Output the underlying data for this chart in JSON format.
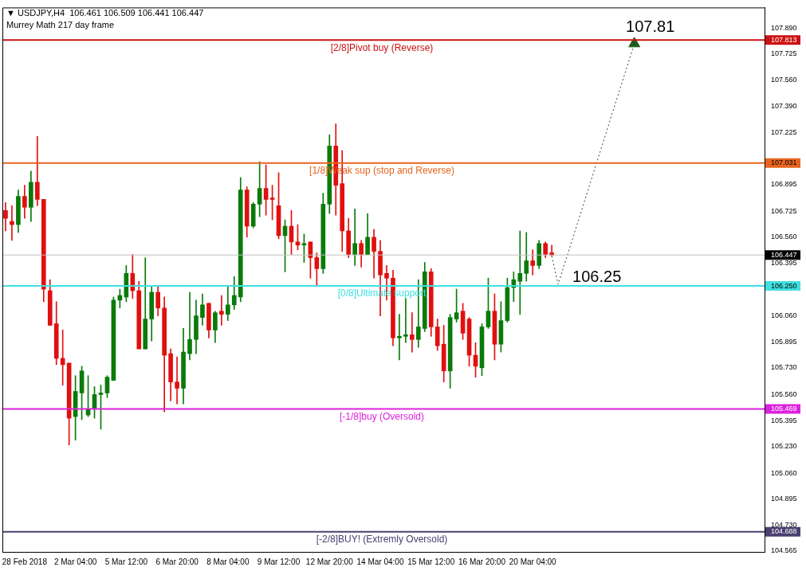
{
  "chart_data": {
    "type": "candlestick",
    "title": "▼ USDJPY,H4  106.461 106.509 106.441 106.447",
    "subtitle": "Murrey Math 217 day frame",
    "categories": [
      null,
      null,
      null,
      "28 Feb 2018",
      null,
      null,
      null,
      null,
      null,
      null,
      null,
      "2 Mar 04:00",
      null,
      null,
      null,
      null,
      null,
      null,
      null,
      "5 Mar 12:00",
      null,
      null,
      null,
      null,
      null,
      null,
      null,
      "6 Mar 20:00",
      null,
      null,
      null,
      null,
      null,
      null,
      null,
      "8 Mar 04:00",
      null,
      null,
      null,
      null,
      null,
      null,
      null,
      "9 Mar 12:00",
      null,
      null,
      null,
      null,
      null,
      null,
      null,
      "12 Mar 20:00",
      null,
      null,
      null,
      null,
      null,
      null,
      null,
      "14 Mar 04:00",
      null,
      null,
      null,
      null,
      null,
      null,
      null,
      "15 Mar 12:00",
      null,
      null,
      null,
      null,
      null,
      null,
      null,
      "16 Mar 20:00",
      null,
      null,
      null,
      null,
      null,
      null,
      null,
      "20 Mar 04:00",
      null,
      null,
      null,
      null,
      null,
      null,
      null,
      null,
      null,
      null,
      null,
      null,
      null,
      null,
      null,
      null,
      null,
      null,
      null,
      null,
      null,
      null,
      null,
      null,
      null,
      null,
      null,
      null,
      null,
      null,
      null,
      null,
      null,
      null,
      null,
      null
    ],
    "ohlc": [
      [
        106.73,
        106.78,
        106.6,
        106.68
      ],
      [
        106.66,
        106.76,
        106.54,
        106.64
      ],
      [
        106.64,
        106.86,
        106.59,
        106.82
      ],
      [
        106.82,
        106.89,
        106.68,
        106.75
      ],
      [
        106.75,
        106.98,
        106.66,
        106.91
      ],
      [
        106.91,
        107.2,
        106.76,
        106.8
      ],
      [
        106.8,
        106.8,
        106.15,
        106.23
      ],
      [
        106.22,
        106.29,
        106.0,
        106.0
      ],
      [
        106.01,
        106.15,
        105.75,
        105.79
      ],
      [
        105.79,
        105.97,
        105.62,
        105.75
      ],
      [
        105.76,
        105.76,
        105.24,
        105.41
      ],
      [
        105.42,
        105.68,
        105.27,
        105.58
      ],
      [
        105.57,
        105.74,
        105.4,
        105.71
      ],
      [
        105.43,
        105.68,
        105.42,
        105.47
      ],
      [
        105.47,
        105.61,
        105.41,
        105.56
      ],
      [
        105.56,
        105.62,
        105.34,
        105.57
      ],
      [
        105.57,
        105.68,
        105.54,
        105.67
      ],
      [
        105.65,
        106.18,
        105.65,
        106.16
      ],
      [
        106.16,
        106.23,
        106.11,
        106.19
      ],
      [
        106.18,
        106.38,
        106.15,
        106.33
      ],
      [
        106.33,
        106.45,
        106.17,
        106.22
      ],
      [
        106.22,
        106.28,
        105.85,
        105.85
      ],
      [
        105.85,
        106.43,
        105.85,
        106.04
      ],
      [
        106.04,
        106.25,
        105.9,
        106.21
      ],
      [
        106.21,
        106.25,
        106.06,
        106.11
      ],
      [
        106.11,
        106.18,
        105.45,
        105.81
      ],
      [
        105.82,
        105.85,
        105.52,
        105.64
      ],
      [
        105.64,
        105.8,
        105.5,
        105.6
      ],
      [
        105.6,
        105.98,
        105.5,
        105.83
      ],
      [
        105.82,
        106.21,
        105.78,
        105.91
      ],
      [
        105.91,
        106.16,
        105.82,
        106.06
      ],
      [
        106.05,
        106.2,
        106.0,
        106.13
      ],
      [
        106.14,
        106.14,
        105.92,
        105.97
      ],
      [
        105.97,
        106.09,
        105.89,
        106.08
      ],
      [
        106.09,
        106.19,
        106.0,
        106.07
      ],
      [
        106.07,
        106.25,
        106.03,
        106.13
      ],
      [
        106.13,
        106.31,
        106.1,
        106.19
      ],
      [
        106.18,
        106.94,
        106.15,
        106.86
      ],
      [
        106.86,
        106.88,
        106.56,
        106.63
      ],
      [
        106.63,
        106.78,
        106.62,
        106.77
      ],
      [
        106.77,
        107.04,
        106.69,
        106.87
      ],
      [
        106.87,
        107.02,
        106.7,
        106.8
      ],
      [
        106.81,
        106.89,
        106.67,
        106.8
      ],
      [
        106.76,
        106.97,
        106.55,
        106.57
      ],
      [
        106.57,
        106.67,
        106.34,
        106.63
      ],
      [
        106.63,
        106.73,
        106.45,
        106.53
      ],
      [
        106.53,
        106.64,
        106.48,
        106.51
      ],
      [
        106.51,
        106.58,
        106.4,
        106.52
      ],
      [
        106.53,
        106.53,
        106.3,
        106.43
      ],
      [
        106.43,
        106.46,
        106.25,
        106.36
      ],
      [
        106.36,
        106.84,
        106.33,
        106.77
      ],
      [
        106.77,
        107.21,
        106.71,
        107.14
      ],
      [
        107.14,
        107.28,
        106.7,
        106.89
      ],
      [
        106.9,
        107.11,
        106.47,
        106.6
      ],
      [
        106.6,
        106.68,
        106.43,
        106.45
      ],
      [
        106.45,
        106.74,
        106.38,
        106.52
      ],
      [
        106.52,
        106.54,
        106.37,
        106.45
      ],
      [
        106.45,
        106.71,
        106.45,
        106.56
      ],
      [
        106.56,
        106.61,
        106.3,
        106.47
      ],
      [
        106.47,
        106.54,
        106.06,
        106.32
      ],
      [
        106.33,
        106.38,
        106.16,
        106.3
      ],
      [
        106.3,
        106.35,
        105.87,
        105.92
      ],
      [
        105.92,
        106.07,
        105.78,
        105.93
      ],
      [
        105.93,
        106.17,
        105.89,
        105.94
      ],
      [
        105.94,
        106.08,
        105.83,
        105.91
      ],
      [
        105.91,
        106.29,
        105.86,
        105.99
      ],
      [
        105.98,
        106.4,
        105.96,
        106.34
      ],
      [
        106.34,
        106.36,
        105.93,
        105.99
      ],
      [
        105.99,
        106.04,
        105.84,
        105.87
      ],
      [
        105.88,
        106.0,
        105.64,
        105.71
      ],
      [
        105.71,
        106.07,
        105.6,
        106.05
      ],
      [
        106.04,
        106.23,
        106.02,
        106.08
      ],
      [
        106.09,
        106.14,
        105.91,
        105.95
      ],
      [
        106.04,
        106.05,
        105.74,
        105.81
      ],
      [
        105.81,
        105.89,
        105.67,
        105.74
      ],
      [
        105.73,
        106.01,
        105.68,
        105.99
      ],
      [
        105.99,
        106.3,
        105.98,
        106.09
      ],
      [
        106.09,
        106.2,
        105.78,
        105.88
      ],
      [
        105.88,
        106.15,
        105.83,
        106.03
      ],
      [
        106.03,
        106.3,
        106.02,
        106.24
      ],
      [
        106.24,
        106.34,
        106.15,
        106.29
      ],
      [
        106.28,
        106.6,
        106.07,
        106.33
      ],
      [
        106.33,
        106.59,
        106.28,
        106.41
      ],
      [
        106.41,
        106.48,
        106.32,
        106.38
      ],
      [
        106.38,
        106.54,
        106.36,
        106.52
      ],
      [
        106.52,
        106.53,
        106.43,
        106.45
      ],
      [
        106.461,
        106.509,
        106.441,
        106.447
      ],
      null,
      null,
      null,
      null,
      null,
      null,
      null,
      null,
      null,
      null,
      null,
      null,
      null,
      null,
      null,
      null,
      null,
      null,
      null,
      null,
      null,
      null,
      null,
      null,
      null,
      null,
      null,
      null,
      null,
      null,
      null,
      null,
      null
    ],
    "series": [
      {
        "type": "line",
        "color": "#1e5a1e",
        "line_style": "dotted",
        "values": [
          null,
          null,
          null,
          null,
          null,
          null,
          null,
          null,
          null,
          null,
          null,
          null,
          null,
          null,
          null,
          null,
          null,
          null,
          null,
          null,
          null,
          null,
          null,
          null,
          null,
          null,
          null,
          null,
          null,
          null,
          null,
          null,
          null,
          null,
          null,
          null,
          null,
          null,
          null,
          null,
          null,
          null,
          null,
          null,
          null,
          null,
          null,
          null,
          null,
          null,
          null,
          null,
          null,
          null,
          null,
          null,
          null,
          null,
          null,
          null,
          null,
          null,
          null,
          null,
          null,
          null,
          null,
          null,
          null,
          null,
          null,
          null,
          null,
          null,
          null,
          null,
          null,
          null,
          null,
          null,
          null,
          null,
          null,
          null,
          null,
          null,
          106.44,
          106.26,
          null,
          null,
          null,
          null,
          null,
          null,
          null,
          null,
          null,
          null,
          null,
          107.79,
          null,
          null,
          null,
          null,
          null,
          null,
          null,
          null,
          null,
          null,
          null,
          null,
          null,
          null,
          null,
          null,
          null,
          null,
          null,
          null
        ]
      }
    ],
    "ylim": [
      104.56,
      108.02
    ],
    "yticks": [
      {
        "value": 107.89,
        "label": "107.890"
      },
      {
        "value": 107.813,
        "label": "107.813"
      },
      {
        "value": 107.725,
        "label": "107.725"
      },
      {
        "value": 107.56,
        "label": "107.560"
      },
      {
        "value": 107.39,
        "label": "107.390"
      },
      {
        "value": 107.225,
        "label": "107.225"
      },
      {
        "value": 107.031,
        "label": "107.031"
      },
      {
        "value": 106.895,
        "label": "106.895"
      },
      {
        "value": 106.725,
        "label": "106.725"
      },
      {
        "value": 106.56,
        "label": "106.560"
      },
      {
        "value": 106.447,
        "label": "106.447"
      },
      {
        "value": 106.395,
        "label": "106.395"
      },
      {
        "value": 106.25,
        "label": "106.250"
      },
      {
        "value": 106.06,
        "label": "106.060"
      },
      {
        "value": 105.895,
        "label": "105.895"
      },
      {
        "value": 105.73,
        "label": "105.730"
      },
      {
        "value": 105.56,
        "label": "105.560"
      },
      {
        "value": 105.469,
        "label": "105.469"
      },
      {
        "value": 105.395,
        "label": "105.395"
      },
      {
        "value": 105.23,
        "label": "105.230"
      },
      {
        "value": 105.06,
        "label": "105.060"
      },
      {
        "value": 104.895,
        "label": "104.895"
      },
      {
        "value": 104.73,
        "label": "104.730"
      },
      {
        "value": 104.688,
        "label": "104.688"
      },
      {
        "value": 104.565,
        "label": "104.565"
      }
    ],
    "ref_lines": [
      {
        "axis": "y",
        "value": 107.813,
        "label": "[2/8]Pivot buy (Reverse)",
        "color": "#cc1111"
      },
      {
        "axis": "y",
        "value": 107.031,
        "label": "[1/8]Weak sup (stop and Reverse)",
        "color": "#e8641e"
      },
      {
        "axis": "y",
        "value": 106.447,
        "label": null,
        "color": "#c0c0c0"
      },
      {
        "axis": "y",
        "value": 106.25,
        "label": "[0/8]Ultimate support",
        "color": "#40e0e0"
      },
      {
        "axis": "y",
        "value": 105.469,
        "label": "[-1/8]buy (Oversold)",
        "color": "#dd22dd"
      },
      {
        "axis": "y",
        "value": 104.688,
        "label": "[-2/8]BUY! (Extremly Oversold)",
        "color": "#4a4070"
      }
    ],
    "annotations": [
      {
        "text": "107.81",
        "y": 107.81
      },
      {
        "text": "106.25",
        "y": 106.25
      }
    ],
    "grid": false,
    "legend": false
  }
}
